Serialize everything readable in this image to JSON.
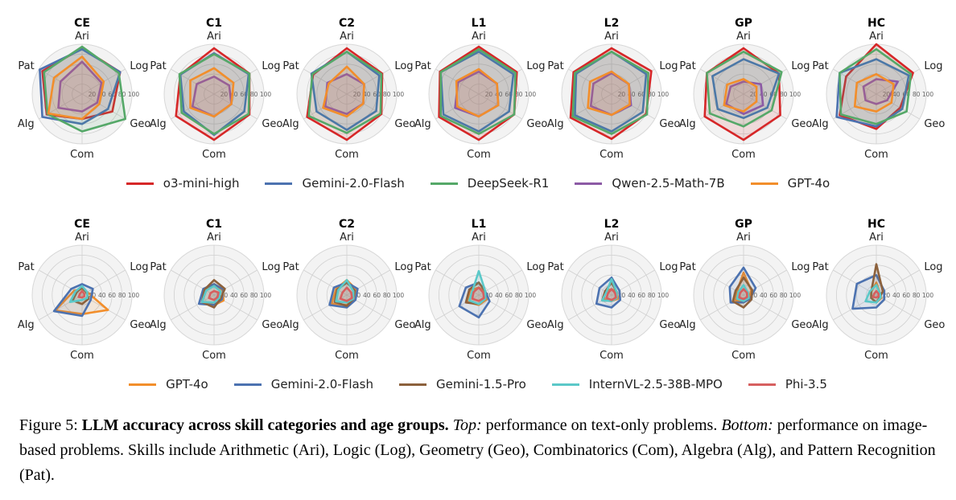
{
  "chart_data": [
    {
      "type": "radar",
      "axes": [
        "Ari",
        "Log",
        "Geo",
        "Com",
        "Alg",
        "Pat"
      ],
      "tick_labels": [
        "20",
        "40",
        "60",
        "80",
        "100"
      ],
      "rlim": [
        0,
        100
      ],
      "panels": [
        "CE",
        "C1",
        "C2",
        "L1",
        "L2",
        "GP",
        "HC"
      ],
      "series": [
        {
          "name": "o3-mini-high",
          "color": "#d62728",
          "values": {
            "CE": [
              92,
              88,
              70,
              50,
              82,
              92
            ],
            "C1": [
              92,
              82,
              82,
              92,
              88,
              78
            ],
            "C2": [
              92,
              82,
              80,
              92,
              92,
              78
            ],
            "L1": [
              95,
              88,
              82,
              92,
              92,
              90
            ],
            "L2": [
              92,
              92,
              80,
              90,
              95,
              88
            ],
            "GP": [
              92,
              82,
              85,
              92,
              90,
              85
            ],
            "HC": [
              100,
              85,
              55,
              70,
              85,
              70
            ]
          }
        },
        {
          "name": "Gemini-2.0-Flash",
          "color": "#4c72b0",
          "values": {
            "CE": [
              90,
              88,
              60,
              60,
              92,
              98
            ],
            "C1": [
              82,
              80,
              70,
              82,
              70,
              78
            ],
            "C2": [
              85,
              75,
              68,
              72,
              70,
              82
            ],
            "L1": [
              85,
              80,
              70,
              75,
              82,
              88
            ],
            "L2": [
              85,
              80,
              72,
              75,
              85,
              82
            ],
            "GP": [
              70,
              82,
              55,
              48,
              60,
              72
            ],
            "HC": [
              70,
              75,
              60,
              65,
              92,
              85
            ]
          }
        },
        {
          "name": "DeepSeek-R1",
          "color": "#55a868",
          "values": {
            "CE": [
              95,
              85,
              100,
              75,
              80,
              88
            ],
            "C1": [
              80,
              82,
              80,
              80,
              75,
              80
            ],
            "C2": [
              85,
              80,
              78,
              78,
              88,
              80
            ],
            "L1": [
              90,
              85,
              82,
              80,
              88,
              88
            ],
            "L2": [
              85,
              85,
              82,
              80,
              90,
              85
            ],
            "GP": [
              85,
              88,
              65,
              65,
              78,
              85
            ],
            "HC": [
              90,
              80,
              70,
              60,
              82,
              85
            ]
          }
        },
        {
          "name": "Qwen-2.5-Math-7B",
          "color": "#8c5aa5",
          "values": {
            "CE": [
              65,
              45,
              35,
              35,
              55,
              50
            ],
            "C1": [
              35,
              35,
              40,
              45,
              50,
              40
            ],
            "C2": [
              40,
              40,
              38,
              40,
              50,
              45
            ],
            "L1": [
              45,
              42,
              45,
              45,
              55,
              48
            ],
            "L2": [
              42,
              40,
              45,
              42,
              48,
              42
            ],
            "GP": [
              25,
              40,
              45,
              40,
              40,
              30
            ],
            "HC": [
              30,
              50,
              25,
              20,
              25,
              30
            ]
          }
        },
        {
          "name": "GPT-4o",
          "color": "#f28e2b",
          "values": {
            "CE": [
              75,
              50,
              40,
              50,
              78,
              65
            ],
            "C1": [
              52,
              45,
              40,
              45,
              55,
              55
            ],
            "C2": [
              55,
              40,
              38,
              45,
              55,
              42
            ],
            "L1": [
              50,
              42,
              45,
              45,
              50,
              52
            ],
            "L2": [
              45,
              40,
              42,
              42,
              55,
              50
            ],
            "GP": [
              30,
              30,
              30,
              35,
              45,
              38
            ],
            "HC": [
              40,
              40,
              35,
              35,
              50,
              45
            ]
          }
        }
      ]
    },
    {
      "type": "radar",
      "axes": [
        "Ari",
        "Log",
        "Geo",
        "Com",
        "Alg",
        "Pat"
      ],
      "tick_labels": [
        "20",
        "40",
        "60",
        "80",
        "100"
      ],
      "rlim": [
        0,
        100
      ],
      "panels": [
        "CE",
        "C1",
        "C2",
        "L1",
        "L2",
        "GP",
        "HC"
      ],
      "series": [
        {
          "name": "GPT-4o",
          "color": "#f28e2b",
          "values": {
            "CE": [
              12,
              12,
              60,
              38,
              62,
              18
            ],
            "C1": [
              22,
              20,
              22,
              20,
              28,
              22
            ],
            "C2": [
              30,
              22,
              18,
              20,
              35,
              25
            ],
            "L1": [
              15,
              15,
              18,
              20,
              28,
              20
            ],
            "L2": [
              12,
              12,
              15,
              12,
              18,
              15
            ],
            "GP": [
              45,
              18,
              12,
              15,
              20,
              15
            ],
            "HC": [
              25,
              8,
              12,
              15,
              12,
              12
            ]
          }
        },
        {
          "name": "Gemini-2.0-Flash",
          "color": "#4c72b0",
          "values": {
            "CE": [
              22,
              25,
              20,
              42,
              65,
              25
            ],
            "C1": [
              22,
              22,
              18,
              20,
              35,
              25
            ],
            "C2": [
              25,
              25,
              20,
              25,
              40,
              30
            ],
            "L1": [
              25,
              15,
              25,
              45,
              45,
              30
            ],
            "L2": [
              35,
              18,
              20,
              25,
              35,
              28
            ],
            "GP": [
              55,
              28,
              15,
              15,
              30,
              32
            ],
            "HC": [
              40,
              18,
              18,
              25,
              55,
              45
            ]
          }
        },
        {
          "name": "Gemini-1.5-Pro",
          "color": "#8c613c",
          "values": {
            "CE": [
              15,
              10,
              15,
              18,
              22,
              12
            ],
            "C1": [
              30,
              25,
              15,
              25,
              28,
              22
            ],
            "C2": [
              25,
              18,
              15,
              22,
              28,
              22
            ],
            "L1": [
              25,
              15,
              15,
              18,
              30,
              22
            ],
            "L2": [
              25,
              12,
              10,
              12,
              22,
              15
            ],
            "GP": [
              35,
              20,
              18,
              25,
              25,
              18
            ],
            "HC": [
              62,
              15,
              8,
              15,
              12,
              12
            ]
          }
        },
        {
          "name": "InternVL-2.5-38B-MPO",
          "color": "#5bc8c8",
          "values": {
            "CE": [
              18,
              12,
              12,
              10,
              28,
              15
            ],
            "C1": [
              18,
              15,
              12,
              15,
              28,
              18
            ],
            "C2": [
              30,
              15,
              15,
              15,
              25,
              20
            ],
            "L1": [
              48,
              15,
              15,
              18,
              22,
              15
            ],
            "L2": [
              32,
              12,
              12,
              12,
              22,
              12
            ],
            "GP": [
              20,
              10,
              12,
              12,
              15,
              12
            ],
            "HC": [
              20,
              8,
              10,
              15,
              25,
              15
            ]
          }
        },
        {
          "name": "Phi-3.5",
          "color": "#d65f5f",
          "values": {
            "CE": [
              8,
              5,
              5,
              5,
              8,
              5
            ],
            "C1": [
              8,
              10,
              8,
              10,
              12,
              8
            ],
            "C2": [
              15,
              10,
              12,
              12,
              15,
              10
            ],
            "L1": [
              15,
              10,
              12,
              12,
              15,
              12
            ],
            "L2": [
              12,
              8,
              10,
              10,
              12,
              8
            ],
            "GP": [
              12,
              8,
              8,
              8,
              10,
              8
            ],
            "HC": [
              8,
              5,
              5,
              5,
              8,
              5
            ]
          }
        }
      ]
    }
  ],
  "caption": {
    "prefix": "Figure 5: ",
    "bold": "LLM accuracy across skill categories and age groups.",
    "top_label": "Top:",
    "top_text": " performance on text-only problems.",
    "bottom_label": "Bottom:",
    "bottom_text": " performance on image-based problems. Skills include Arithmetic (Ari), Logic (Log), Geometry (Geo), Combinatorics (Com), Algebra (Alg), and Pattern Recognition (Pat)."
  }
}
